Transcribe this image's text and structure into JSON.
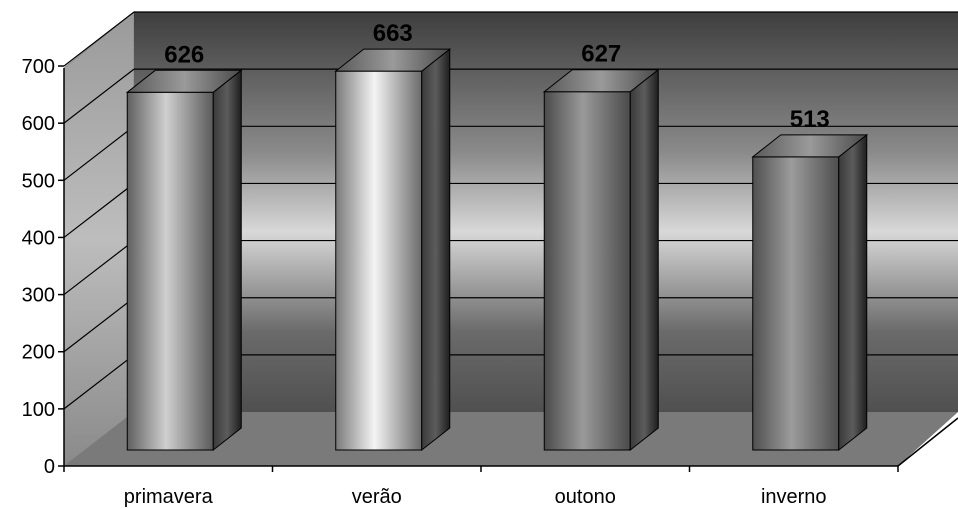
{
  "chart_data": {
    "type": "bar",
    "style": "3d-cylinder",
    "categories": [
      "primavera",
      "verão",
      "outono",
      "inverno"
    ],
    "values": [
      626,
      663,
      627,
      513
    ],
    "data_labels": [
      "626",
      "663",
      "627",
      "513"
    ],
    "title": "",
    "xlabel": "",
    "ylabel": "",
    "ylim": [
      0,
      700
    ],
    "yticks": [
      0,
      100,
      200,
      300,
      400,
      500,
      600,
      700
    ],
    "grid": true,
    "legend": "none"
  },
  "colors": {
    "wall_dark": "#444444",
    "wall_light": "#e2e2e2",
    "floor": "#7a7a7a",
    "gridline": "#000000",
    "bar_highlight": "#f2f2f2",
    "bar_shadow": "#555555",
    "bar_side": "#2c2c2c",
    "bar_top": "#6d6d6d"
  }
}
